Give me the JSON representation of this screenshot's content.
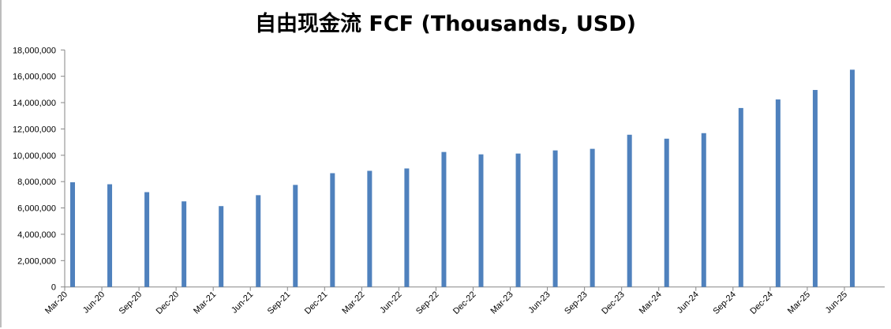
{
  "chart_data": {
    "type": "bar",
    "title": "自由现金流 FCF (Thousands, USD)",
    "categories": [
      "Mar-20",
      "Jun-20",
      "Sep-20",
      "Dec-20",
      "Mar-21",
      "Jun-21",
      "Sep-21",
      "Dec-21",
      "Mar-22",
      "Jun-22",
      "Sep-22",
      "Dec-22",
      "Mar-23",
      "Jun-23",
      "Sep-23",
      "Dec-23",
      "Mar-24",
      "Jun-24",
      "Sep-24",
      "Dec-24",
      "Mar-25",
      "Jun-25"
    ],
    "values": [
      7950000,
      7800000,
      7200000,
      6500000,
      6140000,
      6970000,
      7750000,
      8640000,
      8820000,
      9000000,
      10250000,
      10070000,
      10130000,
      10370000,
      10490000,
      11560000,
      11260000,
      11680000,
      13590000,
      14240000,
      14960000,
      16500000
    ],
    "ylim": [
      0,
      18000000
    ],
    "yticks": [
      0,
      2000000,
      4000000,
      6000000,
      8000000,
      10000000,
      12000000,
      14000000,
      16000000,
      18000000
    ],
    "ytick_labels": [
      "0",
      "2,000,000",
      "4,000,000",
      "6,000,000",
      "8,000,000",
      "10,000,000",
      "12,000,000",
      "14,000,000",
      "16,000,000",
      "18,000,000"
    ],
    "xlabel": "",
    "ylabel": "",
    "grid": false,
    "legend": "none",
    "bar_color": "#4f81bd",
    "axis_color": "#868686"
  }
}
